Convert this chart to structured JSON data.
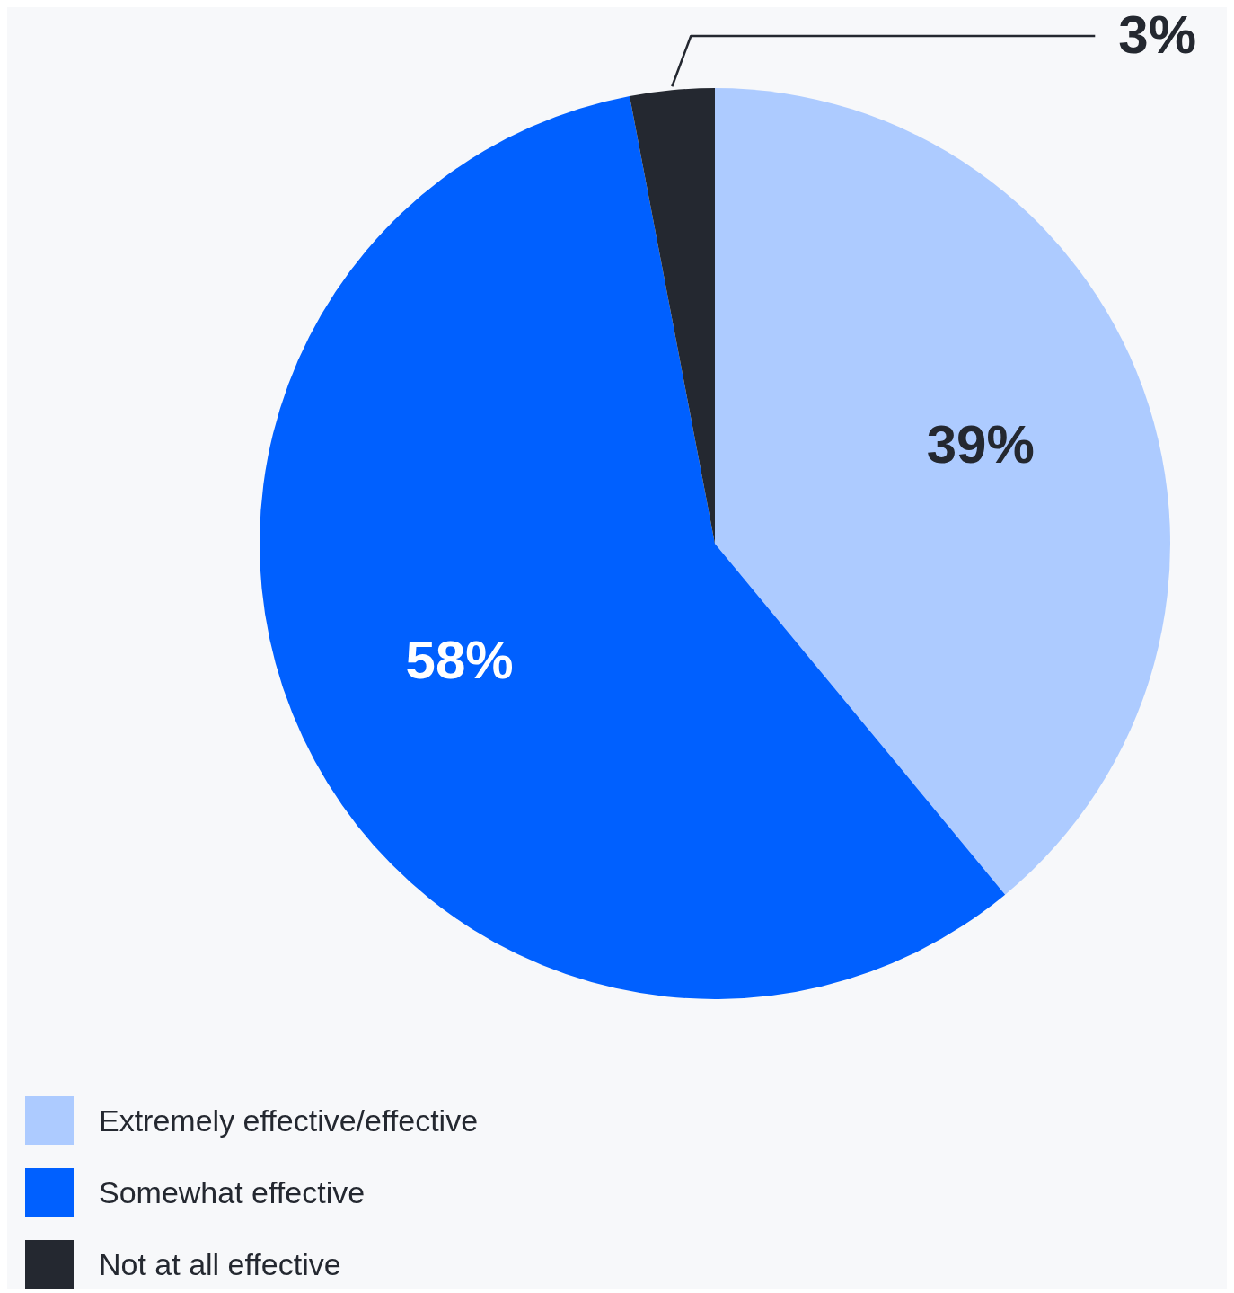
{
  "chart_data": {
    "type": "pie",
    "categories": [
      "Extremely effective/effective",
      "Somewhat effective",
      "Not at all effective"
    ],
    "values": [
      39,
      58,
      3
    ],
    "colors": [
      "#adcbff",
      "#0060ff",
      "#242830"
    ],
    "value_labels": [
      "39%",
      "58%",
      "3%"
    ],
    "legend": "bottom left"
  }
}
